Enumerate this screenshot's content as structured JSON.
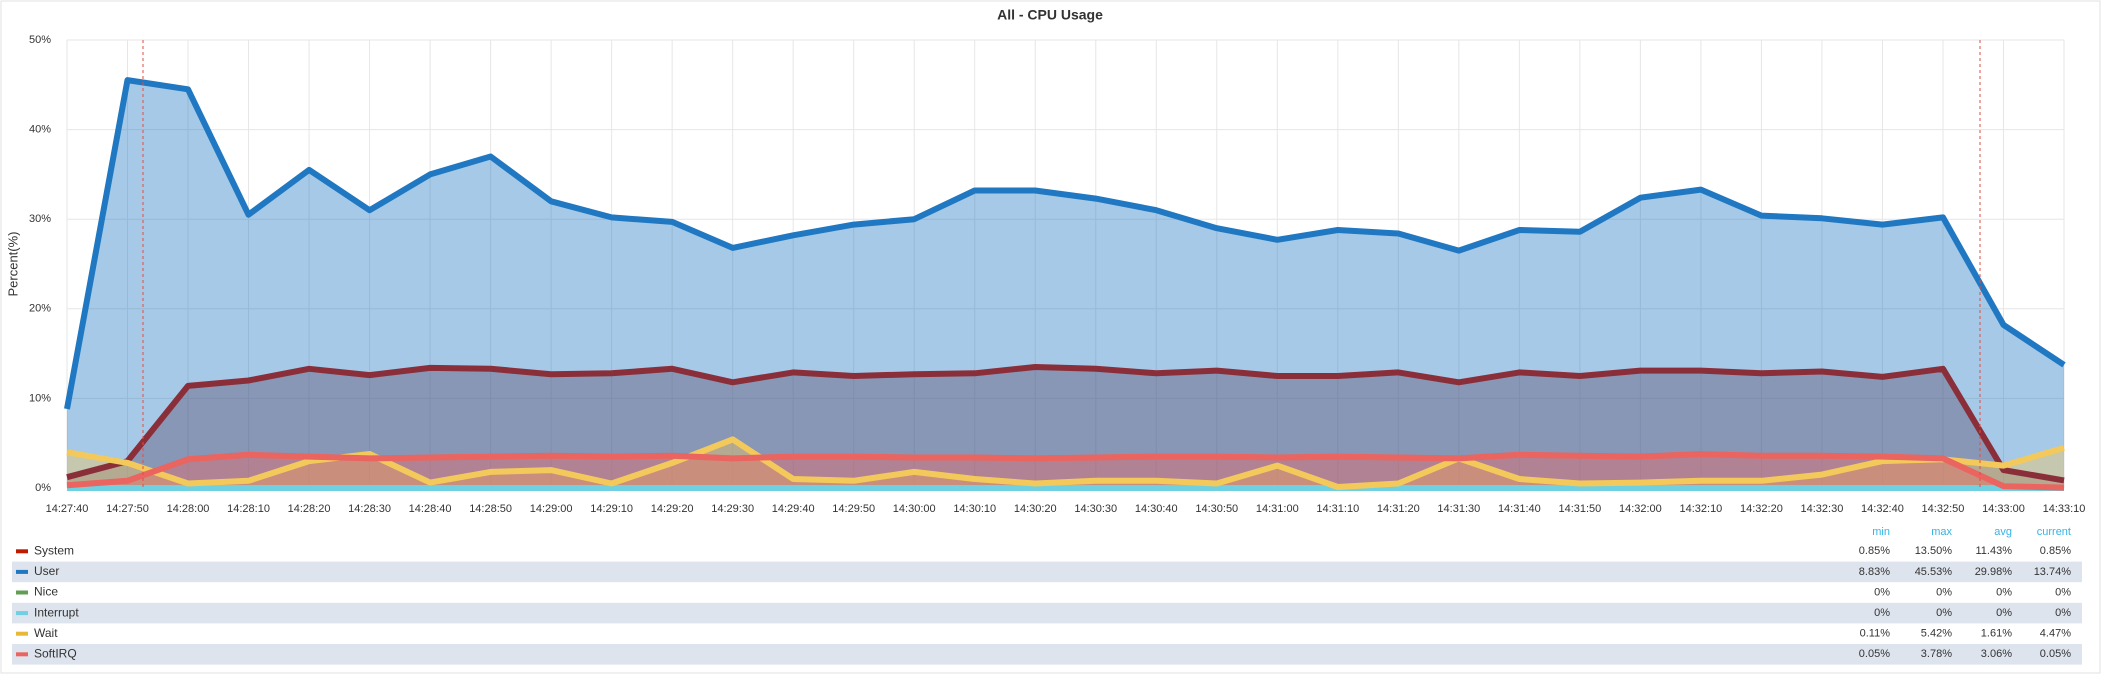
{
  "chart_data": {
    "type": "line",
    "title": "All - CPU Usage",
    "y_label": "Percent(%)",
    "categories": [
      "14:27:40",
      "14:27:50",
      "14:28:00",
      "14:28:10",
      "14:28:20",
      "14:28:30",
      "14:28:40",
      "14:28:50",
      "14:29:00",
      "14:29:10",
      "14:29:20",
      "14:29:30",
      "14:29:40",
      "14:29:50",
      "14:30:00",
      "14:30:10",
      "14:30:20",
      "14:30:30",
      "14:30:40",
      "14:30:50",
      "14:31:00",
      "14:31:10",
      "14:31:20",
      "14:31:30",
      "14:31:40",
      "14:31:50",
      "14:32:00",
      "14:32:10",
      "14:32:20",
      "14:32:30",
      "14:32:40",
      "14:32:50",
      "14:33:00",
      "14:33:10"
    ],
    "ylim": [
      0,
      50
    ],
    "yticks": [
      {
        "value": 0,
        "label": "0%"
      },
      {
        "value": 10,
        "label": "10%"
      },
      {
        "value": 20,
        "label": "20%"
      },
      {
        "value": 30,
        "label": "30%"
      },
      {
        "value": 40,
        "label": "40%"
      },
      {
        "value": 50,
        "label": "50%"
      }
    ],
    "grid": true,
    "fill": true,
    "legend_columns": [
      "min",
      "max",
      "avg",
      "current"
    ],
    "series": [
      {
        "name": "System",
        "color": "#8a2f3a",
        "legend_color": "#bf1b00",
        "values": [
          1.2,
          3.0,
          11.4,
          12.0,
          13.3,
          12.6,
          13.4,
          13.3,
          12.7,
          12.8,
          13.3,
          11.8,
          12.9,
          12.5,
          12.7,
          12.8,
          13.5,
          13.3,
          12.8,
          13.1,
          12.5,
          12.5,
          12.9,
          11.8,
          12.9,
          12.5,
          13.1,
          13.1,
          12.8,
          13.0,
          12.4,
          13.3,
          2.0,
          0.85
        ],
        "stats": [
          "0.85%",
          "13.50%",
          "11.43%",
          "0.85%"
        ]
      },
      {
        "name": "User",
        "color": "#1f78c1",
        "legend_color": "#1f78c1",
        "values": [
          8.83,
          45.53,
          44.5,
          30.5,
          35.5,
          31.0,
          35.0,
          37.0,
          32.0,
          30.2,
          29.7,
          26.8,
          28.2,
          29.4,
          30.0,
          33.2,
          33.2,
          32.3,
          31.0,
          29.0,
          27.7,
          28.8,
          28.4,
          26.5,
          28.8,
          28.6,
          32.4,
          33.3,
          30.4,
          30.1,
          29.4,
          30.2,
          18.2,
          13.74
        ],
        "stats": [
          "8.83%",
          "45.53%",
          "29.98%",
          "13.74%"
        ]
      },
      {
        "name": "Nice",
        "color": "#629e51",
        "legend_color": "#629e51",
        "values": [
          0,
          0,
          0,
          0,
          0,
          0,
          0,
          0,
          0,
          0,
          0,
          0,
          0,
          0,
          0,
          0,
          0,
          0,
          0,
          0,
          0,
          0,
          0,
          0,
          0,
          0,
          0,
          0,
          0,
          0,
          0,
          0,
          0,
          0
        ],
        "stats": [
          "0%",
          "0%",
          "0%",
          "0%"
        ]
      },
      {
        "name": "Interrupt",
        "color": "#6ed0e0",
        "legend_color": "#6ed0e0",
        "values": [
          0,
          0,
          0,
          0,
          0,
          0,
          0,
          0,
          0,
          0,
          0,
          0,
          0,
          0,
          0,
          0,
          0,
          0,
          0,
          0,
          0,
          0,
          0,
          0,
          0,
          0,
          0,
          0,
          0,
          0,
          0,
          0,
          0,
          0
        ],
        "stats": [
          "0%",
          "0%",
          "0%",
          "0%"
        ]
      },
      {
        "name": "Wait",
        "color": "#f4c95b",
        "legend_color": "#eab839",
        "values": [
          4.0,
          2.8,
          0.5,
          0.8,
          3.0,
          3.8,
          0.6,
          1.8,
          2.0,
          0.5,
          2.8,
          5.42,
          1.0,
          0.8,
          1.8,
          1.0,
          0.5,
          0.8,
          0.8,
          0.5,
          2.5,
          0.11,
          0.5,
          3.3,
          1.0,
          0.5,
          0.6,
          0.8,
          0.8,
          1.5,
          3.0,
          3.2,
          2.5,
          4.47
        ],
        "stats": [
          "0.11%",
          "5.42%",
          "1.61%",
          "4.47%"
        ]
      },
      {
        "name": "SoftIRQ",
        "color": "#ea6460",
        "legend_color": "#ea6460",
        "values": [
          0.3,
          0.8,
          3.2,
          3.7,
          3.5,
          3.3,
          3.4,
          3.5,
          3.6,
          3.5,
          3.6,
          3.3,
          3.5,
          3.5,
          3.4,
          3.4,
          3.3,
          3.4,
          3.5,
          3.5,
          3.4,
          3.5,
          3.4,
          3.3,
          3.7,
          3.6,
          3.5,
          3.78,
          3.6,
          3.6,
          3.5,
          3.3,
          0.2,
          0.05
        ],
        "stats": [
          "0.05%",
          "3.78%",
          "3.06%",
          "0.05%"
        ]
      }
    ]
  }
}
